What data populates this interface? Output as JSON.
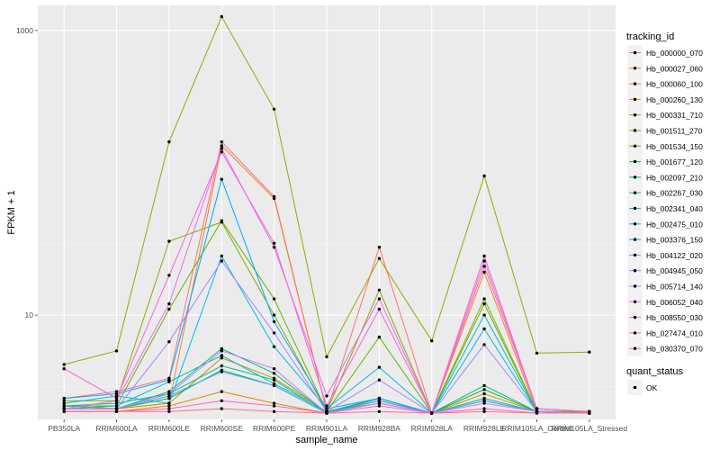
{
  "chart_data": {
    "type": "line",
    "xlabel": "sample_name",
    "ylabel": "FPKM + 1",
    "y_scale": "log10",
    "ylim": [
      1.85,
      1500
    ],
    "y_ticks": [
      10,
      1000
    ],
    "y_tick_labels": [
      "10",
      "1000"
    ],
    "grid": true,
    "legend_placement": "right",
    "categories": [
      "PB350LA",
      "RRIM600LA",
      "RRIM600LE",
      "RRIM600SE",
      "RRIM600PE",
      "RRIM901LA",
      "RRIM928BA",
      "RRIM928LA",
      "RRIM928LE",
      "RRIM105LA_Control",
      "RRIM105LA_Stressed"
    ],
    "legend_title": "tracking_id",
    "legend2_title": "quant_status",
    "legend2_label": "OK",
    "series": [
      {
        "name": "Hb_000000_070",
        "color": "#F8766D",
        "values": [
          2.6,
          2.9,
          3.6,
          165,
          68,
          2.1,
          30,
          2.05,
          22,
          2.2,
          2.1
        ]
      },
      {
        "name": "Hb_000027_060",
        "color": "#EF7F49",
        "values": [
          2.3,
          2.2,
          2.4,
          155,
          66,
          2.1,
          2.5,
          2.05,
          20,
          2.1,
          2.1
        ]
      },
      {
        "name": "Hb_000060_100",
        "color": "#E38900",
        "values": [
          2.1,
          2.1,
          2.3,
          2.9,
          2.4,
          2.05,
          2.6,
          2.05,
          2.5,
          2.1,
          2.05
        ]
      },
      {
        "name": "Hb_000260_130",
        "color": "#D39200",
        "values": [
          2.3,
          2.2,
          2.4,
          5.0,
          3.6,
          2.1,
          2.4,
          2.05,
          2.8,
          2.1,
          2.1
        ]
      },
      {
        "name": "Hb_000331_710",
        "color": "#93AA00",
        "values": [
          4.5,
          5.6,
          165,
          1250,
          280,
          5.1,
          25,
          6.6,
          95,
          5.4,
          5.5
        ]
      },
      {
        "name": "Hb_001511_270",
        "color": "#8AAB00",
        "values": [
          2.5,
          2.5,
          33,
          45,
          10,
          2.1,
          15,
          2.05,
          13,
          2.1,
          2.1
        ]
      },
      {
        "name": "Hb_001534_150",
        "color": "#5EB300",
        "values": [
          2.3,
          2.3,
          11,
          46,
          13,
          2.1,
          7.0,
          2.05,
          12,
          2.1,
          2.1
        ]
      },
      {
        "name": "Hb_001677_120",
        "color": "#00BA38",
        "values": [
          2.2,
          2.2,
          2.6,
          4.1,
          3.2,
          2.05,
          2.5,
          2.05,
          3.0,
          2.1,
          2.05
        ]
      },
      {
        "name": "Hb_002097_210",
        "color": "#00BE70",
        "values": [
          2.2,
          2.2,
          2.9,
          5.8,
          3.9,
          2.05,
          2.6,
          2.05,
          3.2,
          2.1,
          2.05
        ]
      },
      {
        "name": "Hb_002267_030",
        "color": "#00C19A",
        "values": [
          2.3,
          2.4,
          2.8,
          4.4,
          3.5,
          2.05,
          2.5,
          2.05,
          2.6,
          2.1,
          2.05
        ]
      },
      {
        "name": "Hb_002341_040",
        "color": "#00BFC4",
        "values": [
          2.2,
          2.3,
          3.4,
          5.2,
          3.3,
          2.1,
          2.6,
          2.05,
          10,
          2.1,
          2.05
        ]
      },
      {
        "name": "Hb_002475_010",
        "color": "#00B8E7",
        "values": [
          2.4,
          2.7,
          2.4,
          26,
          6.0,
          2.2,
          4.3,
          2.05,
          8.0,
          2.1,
          2.05
        ]
      },
      {
        "name": "Hb_003376_150",
        "color": "#00A9FF",
        "values": [
          2.6,
          2.8,
          3.5,
          90,
          9.0,
          2.2,
          2.6,
          2.05,
          2.5,
          2.1,
          2.05
        ]
      },
      {
        "name": "Hb_004122_020",
        "color": "#619CFF",
        "values": [
          2.2,
          2.2,
          2.7,
          4.0,
          3.2,
          2.05,
          2.5,
          2.05,
          2.5,
          2.1,
          2.05
        ]
      },
      {
        "name": "Hb_004945_050",
        "color": "#AB82FF",
        "values": [
          2.2,
          2.2,
          6.5,
          24,
          7.5,
          2.1,
          3.5,
          2.05,
          6.2,
          2.1,
          2.05
        ]
      },
      {
        "name": "Hb_005714_140",
        "color": "#C77CFF",
        "values": [
          2.2,
          2.2,
          2.8,
          5.6,
          4.2,
          2.05,
          2.4,
          2.05,
          2.4,
          2.1,
          2.05
        ]
      },
      {
        "name": "Hb_006052_040",
        "color": "#E76BF3",
        "values": [
          2.2,
          2.5,
          12,
          148,
          30,
          2.7,
          13,
          2.05,
          24,
          2.2,
          2.1
        ]
      },
      {
        "name": "Hb_008550_030",
        "color": "#FA62DB",
        "values": [
          4.2,
          2.6,
          19,
          140,
          32,
          2.3,
          11,
          2.05,
          26,
          2.2,
          2.1
        ]
      },
      {
        "name": "Hb_027474_010",
        "color": "#FF62BC",
        "values": [
          2.1,
          2.1,
          2.2,
          2.5,
          2.3,
          2.05,
          2.3,
          2.05,
          2.2,
          2.05,
          2.05
        ]
      },
      {
        "name": "Hb_030370_070",
        "color": "#FF6C91",
        "values": [
          2.1,
          2.1,
          2.1,
          2.2,
          2.1,
          2.05,
          2.1,
          2.05,
          2.1,
          2.05,
          2.05
        ]
      }
    ]
  }
}
